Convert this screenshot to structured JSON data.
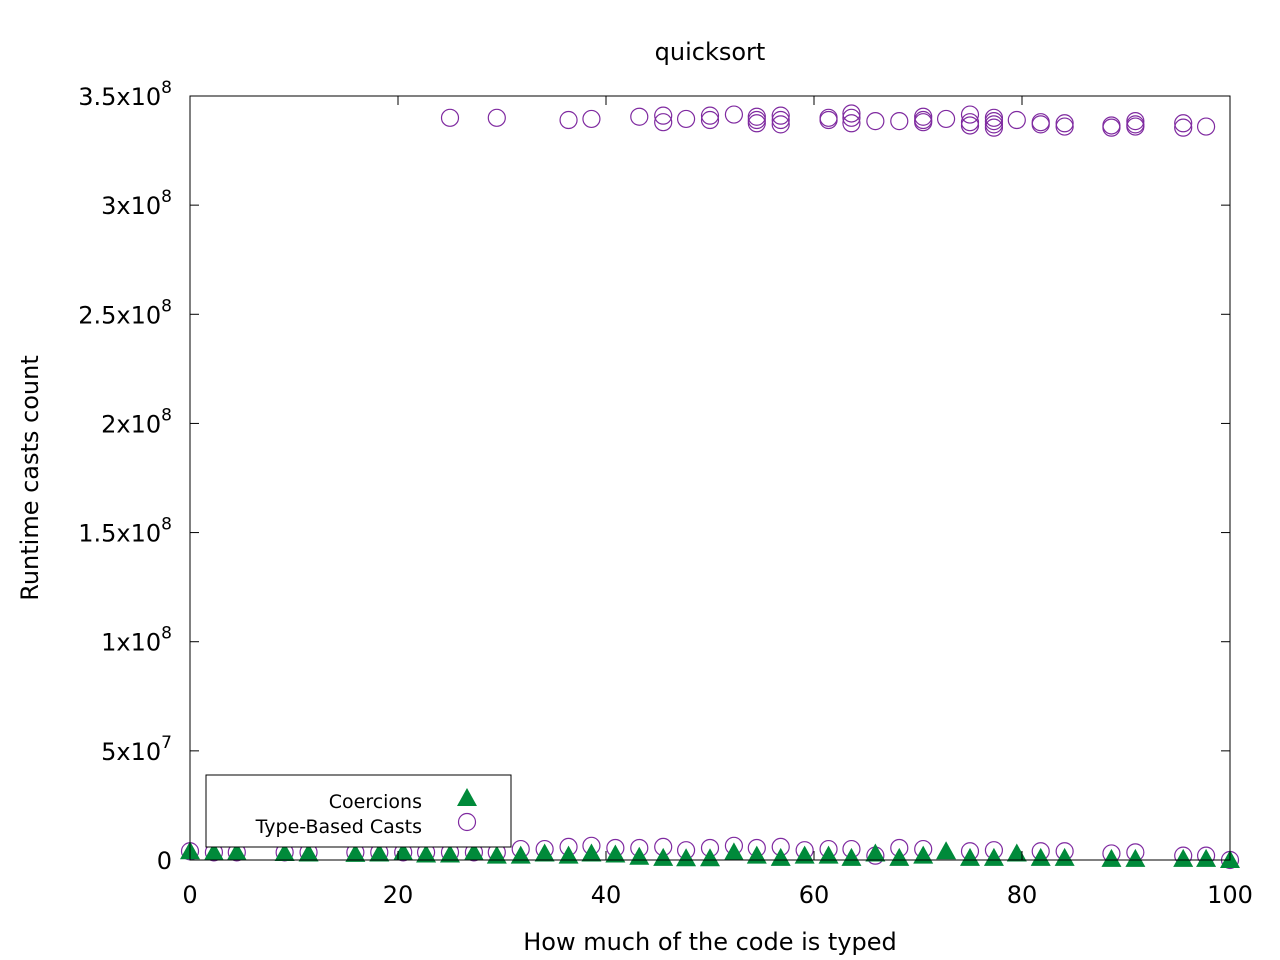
{
  "chart_data": {
    "type": "scatter",
    "title": "quicksort",
    "xlabel": "How much of the code is typed",
    "ylabel": "Runtime casts count",
    "xlim": [
      0,
      100
    ],
    "ylim": [
      0,
      350000000
    ],
    "x_ticks": [
      {
        "value": 0,
        "label": "0"
      },
      {
        "value": 20,
        "label": "20"
      },
      {
        "value": 40,
        "label": "40"
      },
      {
        "value": 60,
        "label": "60"
      },
      {
        "value": 80,
        "label": "80"
      },
      {
        "value": 100,
        "label": "100"
      }
    ],
    "y_ticks": [
      {
        "value": 0,
        "mant": "0",
        "exp": ""
      },
      {
        "value": 50000000,
        "mant": "5x10",
        "exp": "7"
      },
      {
        "value": 100000000,
        "mant": "1x10",
        "exp": "8"
      },
      {
        "value": 150000000,
        "mant": "1.5x10",
        "exp": "8"
      },
      {
        "value": 200000000,
        "mant": "2x10",
        "exp": "8"
      },
      {
        "value": 250000000,
        "mant": "2.5x10",
        "exp": "8"
      },
      {
        "value": 300000000,
        "mant": "3x10",
        "exp": "8"
      },
      {
        "value": 350000000,
        "mant": "3.5x10",
        "exp": "8"
      }
    ],
    "grid": false,
    "legend_position": "bottom-left",
    "series": [
      {
        "name": "Coercions",
        "marker": "filled-triangle",
        "color": "#008a3a",
        "points": [
          [
            0,
            4000000
          ],
          [
            2.3,
            3500000
          ],
          [
            4.5,
            3500000
          ],
          [
            9.1,
            3200000
          ],
          [
            11.4,
            3000000
          ],
          [
            15.9,
            2800000
          ],
          [
            18.2,
            3000000
          ],
          [
            20.5,
            3500000
          ],
          [
            22.7,
            2500000
          ],
          [
            25,
            2500000
          ],
          [
            27.3,
            3500000
          ],
          [
            29.5,
            2000000
          ],
          [
            31.8,
            2000000
          ],
          [
            34.1,
            3000000
          ],
          [
            36.4,
            2000000
          ],
          [
            38.6,
            3000000
          ],
          [
            40.9,
            2500000
          ],
          [
            43.2,
            1500000
          ],
          [
            45.5,
            1000000
          ],
          [
            47.7,
            800000
          ],
          [
            50,
            800000
          ],
          [
            52.3,
            3500000
          ],
          [
            54.5,
            2000000
          ],
          [
            56.8,
            1000000
          ],
          [
            59.1,
            2000000
          ],
          [
            61.4,
            2000000
          ],
          [
            63.6,
            1000000
          ],
          [
            65.9,
            3000000
          ],
          [
            68.2,
            1000000
          ],
          [
            70.5,
            2000000
          ],
          [
            72.7,
            4000000
          ],
          [
            75,
            1000000
          ],
          [
            77.3,
            1000000
          ],
          [
            79.5,
            3000000
          ],
          [
            81.8,
            1000000
          ],
          [
            84.1,
            1000000
          ],
          [
            88.6,
            500000
          ],
          [
            90.9,
            500000
          ],
          [
            95.5,
            500000
          ],
          [
            97.7,
            500000
          ],
          [
            100,
            0
          ]
        ]
      },
      {
        "name": "Type-Based Casts",
        "marker": "open-circle",
        "color": "#7f2aa0",
        "points": [
          [
            0,
            4000000
          ],
          [
            2.3,
            3500000
          ],
          [
            4.5,
            3500000
          ],
          [
            9.1,
            3500000
          ],
          [
            11.4,
            3500000
          ],
          [
            15.9,
            3500000
          ],
          [
            18.2,
            3500000
          ],
          [
            20.5,
            3500000
          ],
          [
            22.7,
            3500000
          ],
          [
            25,
            3500000
          ],
          [
            25,
            340000000
          ],
          [
            27.3,
            3500000
          ],
          [
            29.5,
            3500000
          ],
          [
            29.5,
            340000000
          ],
          [
            31.8,
            5000000
          ],
          [
            34.1,
            5000000
          ],
          [
            36.4,
            6000000
          ],
          [
            36.4,
            339000000
          ],
          [
            38.6,
            6500000
          ],
          [
            38.6,
            339500000
          ],
          [
            40.9,
            5500000
          ],
          [
            43.2,
            5500000
          ],
          [
            43.2,
            340500000
          ],
          [
            45.5,
            6000000
          ],
          [
            45.5,
            341000000
          ],
          [
            45.5,
            338000000
          ],
          [
            47.7,
            4500000
          ],
          [
            47.7,
            339500000
          ],
          [
            50,
            5500000
          ],
          [
            50,
            341000000
          ],
          [
            50,
            339000000
          ],
          [
            52.3,
            6500000
          ],
          [
            52.3,
            341500000
          ],
          [
            54.5,
            5500000
          ],
          [
            54.5,
            340500000
          ],
          [
            54.5,
            339000000
          ],
          [
            54.5,
            337500000
          ],
          [
            56.8,
            6000000
          ],
          [
            56.8,
            341000000
          ],
          [
            56.8,
            339000000
          ],
          [
            56.8,
            337000000
          ],
          [
            59.1,
            4500000
          ],
          [
            61.4,
            5000000
          ],
          [
            61.4,
            340000000
          ],
          [
            61.4,
            339000000
          ],
          [
            63.6,
            5000000
          ],
          [
            63.6,
            342000000
          ],
          [
            63.6,
            340000000
          ],
          [
            63.6,
            337500000
          ],
          [
            65.9,
            2000000
          ],
          [
            65.9,
            338500000
          ],
          [
            68.2,
            5500000
          ],
          [
            68.2,
            338500000
          ],
          [
            70.5,
            5000000
          ],
          [
            70.5,
            340500000
          ],
          [
            70.5,
            339000000
          ],
          [
            70.5,
            338000000
          ],
          [
            72.7,
            339500000
          ],
          [
            75,
            4000000
          ],
          [
            75,
            341500000
          ],
          [
            75,
            338000000
          ],
          [
            75,
            336500000
          ],
          [
            77.3,
            4500000
          ],
          [
            77.3,
            340000000
          ],
          [
            77.3,
            338500000
          ],
          [
            77.3,
            337000000
          ],
          [
            77.3,
            335500000
          ],
          [
            79.5,
            339000000
          ],
          [
            81.8,
            4000000
          ],
          [
            81.8,
            338000000
          ],
          [
            81.8,
            337000000
          ],
          [
            84.1,
            4000000
          ],
          [
            84.1,
            337500000
          ],
          [
            84.1,
            336000000
          ],
          [
            88.6,
            3000000
          ],
          [
            88.6,
            336500000
          ],
          [
            88.6,
            335500000
          ],
          [
            90.9,
            3500000
          ],
          [
            90.9,
            338500000
          ],
          [
            90.9,
            337000000
          ],
          [
            90.9,
            336000000
          ],
          [
            95.5,
            2000000
          ],
          [
            95.5,
            337500000
          ],
          [
            95.5,
            335500000
          ],
          [
            97.7,
            2000000
          ],
          [
            97.7,
            336000000
          ],
          [
            100,
            0
          ]
        ]
      }
    ]
  }
}
